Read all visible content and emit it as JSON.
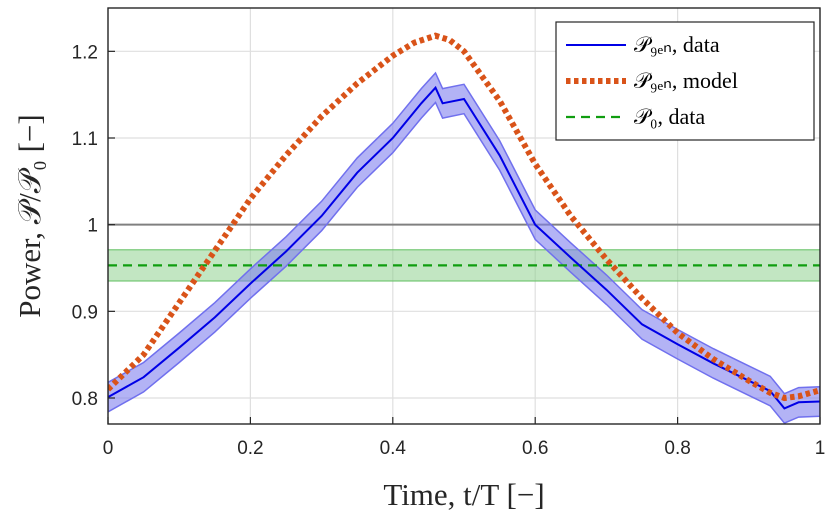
{
  "chart_data": {
    "type": "line",
    "xlabel": "Time, t/T [−]",
    "ylabel": "Power, 𝒫/𝒫₀ [−]",
    "xlim": [
      0,
      1
    ],
    "ylim": [
      0.77,
      1.25
    ],
    "x_ticks": [
      0,
      0.2,
      0.4,
      0.6,
      0.8,
      1
    ],
    "x_tick_labels": [
      "0",
      "0.2",
      "0.4",
      "0.6",
      "0.8",
      "1"
    ],
    "y_ticks": [
      0.8,
      0.9,
      1.0,
      1.1,
      1.2
    ],
    "y_tick_labels": [
      "0.8",
      "0.9",
      "1",
      "1.1",
      "1.2"
    ],
    "grid": true,
    "legend_position": "top-right",
    "reference_line": {
      "y": 1.0,
      "color": "#808080"
    },
    "series": [
      {
        "name": "𝒫_gen, data",
        "legend_label": "𝒫₉ₑₙ, data",
        "style": "solid",
        "color": "#0000e6",
        "band_color": "#8080ee",
        "band_halfwidth": 0.017,
        "x": [
          0,
          0.05,
          0.1,
          0.15,
          0.2,
          0.25,
          0.3,
          0.35,
          0.4,
          0.44,
          0.46,
          0.47,
          0.5,
          0.55,
          0.6,
          0.65,
          0.7,
          0.75,
          0.8,
          0.85,
          0.9,
          0.93,
          0.95,
          0.97,
          1.0
        ],
        "y": [
          0.801,
          0.824,
          0.858,
          0.893,
          0.932,
          0.969,
          1.01,
          1.06,
          1.1,
          1.14,
          1.158,
          1.14,
          1.145,
          1.08,
          1.0,
          0.962,
          0.925,
          0.885,
          0.862,
          0.84,
          0.82,
          0.808,
          0.788,
          0.795,
          0.796
        ]
      },
      {
        "name": "𝒫_gen, model",
        "legend_label": "𝒫₉ₑₙ, model",
        "style": "dotted",
        "color": "#d95319",
        "x": [
          0,
          0.05,
          0.1,
          0.15,
          0.2,
          0.25,
          0.3,
          0.35,
          0.4,
          0.43,
          0.46,
          0.48,
          0.5,
          0.55,
          0.6,
          0.65,
          0.7,
          0.75,
          0.8,
          0.85,
          0.9,
          0.93,
          0.95,
          0.97,
          1.0
        ],
        "y": [
          0.81,
          0.85,
          0.91,
          0.97,
          1.03,
          1.08,
          1.125,
          1.163,
          1.195,
          1.21,
          1.218,
          1.213,
          1.2,
          1.143,
          1.07,
          1.01,
          0.96,
          0.915,
          0.875,
          0.845,
          0.82,
          0.806,
          0.8,
          0.802,
          0.809
        ]
      },
      {
        "name": "𝒫₀, data",
        "legend_label": "𝒫₀, data",
        "style": "dashed",
        "color": "#109d10",
        "band_color": "#8fd18f",
        "x": [
          0,
          1
        ],
        "y": [
          0.953,
          0.953
        ],
        "band": [
          0.935,
          0.971
        ]
      }
    ]
  }
}
